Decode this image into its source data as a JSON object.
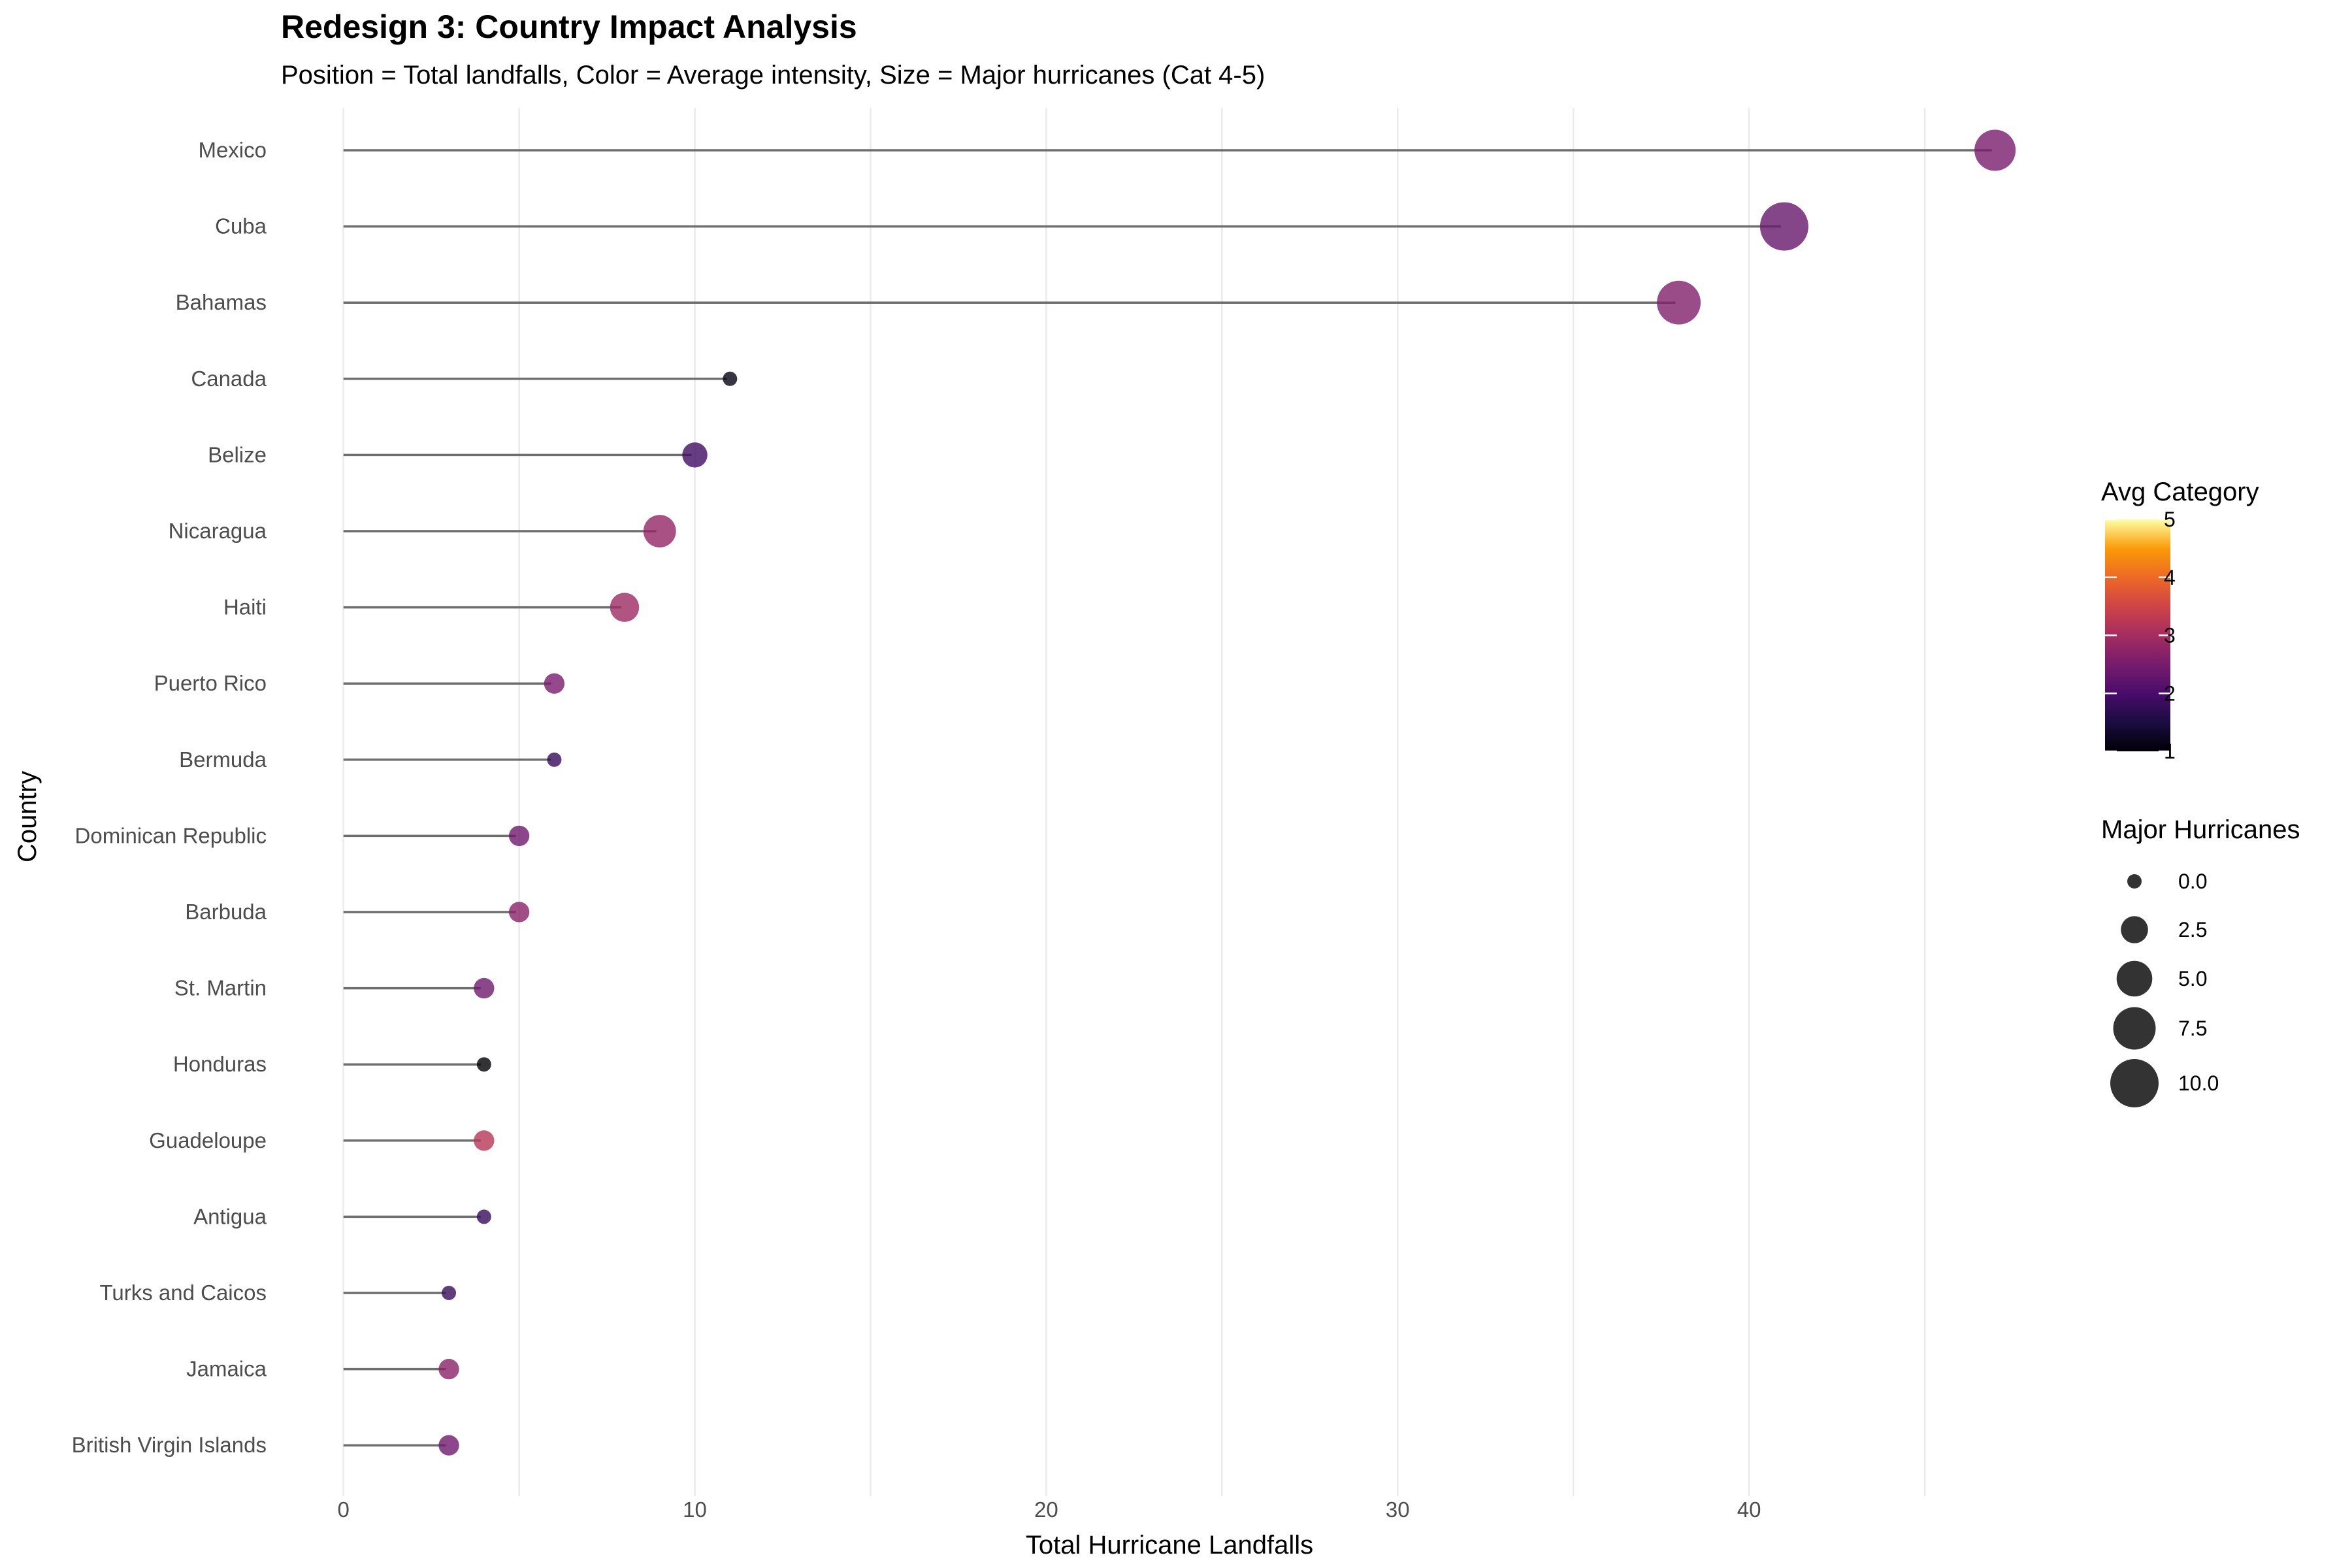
{
  "chart_data": {
    "type": "scatter",
    "subtype": "lollipop",
    "title": "Redesign 3: Country Impact Analysis",
    "subtitle": "Position = Total landfalls, Color = Average intensity, Size = Major hurricanes (Cat 4-5)",
    "xlabel": "Total Hurricane Landfalls",
    "ylabel": "Country",
    "xlim": [
      -1.5,
      50
    ],
    "x_ticks": [
      "0",
      "10",
      "20",
      "30",
      "40"
    ],
    "x_tick_values": [
      0,
      10,
      20,
      30,
      40
    ],
    "grid": true,
    "legend_position": "right",
    "color_scale": "inferno",
    "countries": [
      {
        "name": "Mexico",
        "landfalls": 47,
        "avg_category": 2.5,
        "major": 7
      },
      {
        "name": "Cuba",
        "landfalls": 41,
        "avg_category": 2.3,
        "major": 10
      },
      {
        "name": "Bahamas",
        "landfalls": 38,
        "avg_category": 2.6,
        "major": 8
      },
      {
        "name": "Canada",
        "landfalls": 11,
        "avg_category": 1.1,
        "major": 0
      },
      {
        "name": "Belize",
        "landfalls": 10,
        "avg_category": 1.9,
        "major": 2
      },
      {
        "name": "Nicaragua",
        "landfalls": 9,
        "avg_category": 2.8,
        "major": 4
      },
      {
        "name": "Haiti",
        "landfalls": 8,
        "avg_category": 2.9,
        "major": 3
      },
      {
        "name": "Puerto Rico",
        "landfalls": 6,
        "avg_category": 2.5,
        "major": 1
      },
      {
        "name": "Bermuda",
        "landfalls": 6,
        "avg_category": 1.8,
        "major": 0
      },
      {
        "name": "Dominican Republic",
        "landfalls": 5,
        "avg_category": 2.4,
        "major": 1
      },
      {
        "name": "Barbuda",
        "landfalls": 5,
        "avg_category": 2.7,
        "major": 1
      },
      {
        "name": "St. Martin",
        "landfalls": 4,
        "avg_category": 2.4,
        "major": 1
      },
      {
        "name": "Honduras",
        "landfalls": 4,
        "avg_category": 1.0,
        "major": 0
      },
      {
        "name": "Guadeloupe",
        "landfalls": 4,
        "avg_category": 3.2,
        "major": 1
      },
      {
        "name": "Antigua",
        "landfalls": 4,
        "avg_category": 1.8,
        "major": 0
      },
      {
        "name": "Turks and Caicos",
        "landfalls": 3,
        "avg_category": 1.8,
        "major": 0
      },
      {
        "name": "Jamaica",
        "landfalls": 3,
        "avg_category": 2.7,
        "major": 1
      },
      {
        "name": "British Virgin Islands",
        "landfalls": 3,
        "avg_category": 2.4,
        "major": 1
      }
    ],
    "color_legend": {
      "title": "Avg Category",
      "range": [
        1,
        5
      ],
      "ticks": [
        "1",
        "2",
        "3",
        "4",
        "5"
      ],
      "tick_values": [
        1,
        2,
        3,
        4,
        5
      ]
    },
    "size_legend": {
      "title": "Major Hurricanes",
      "range": [
        0,
        10
      ],
      "entries": [
        "0.0",
        "2.5",
        "5.0",
        "7.5",
        "10.0"
      ],
      "entry_values": [
        0,
        2.5,
        5,
        7.5,
        10
      ]
    }
  }
}
